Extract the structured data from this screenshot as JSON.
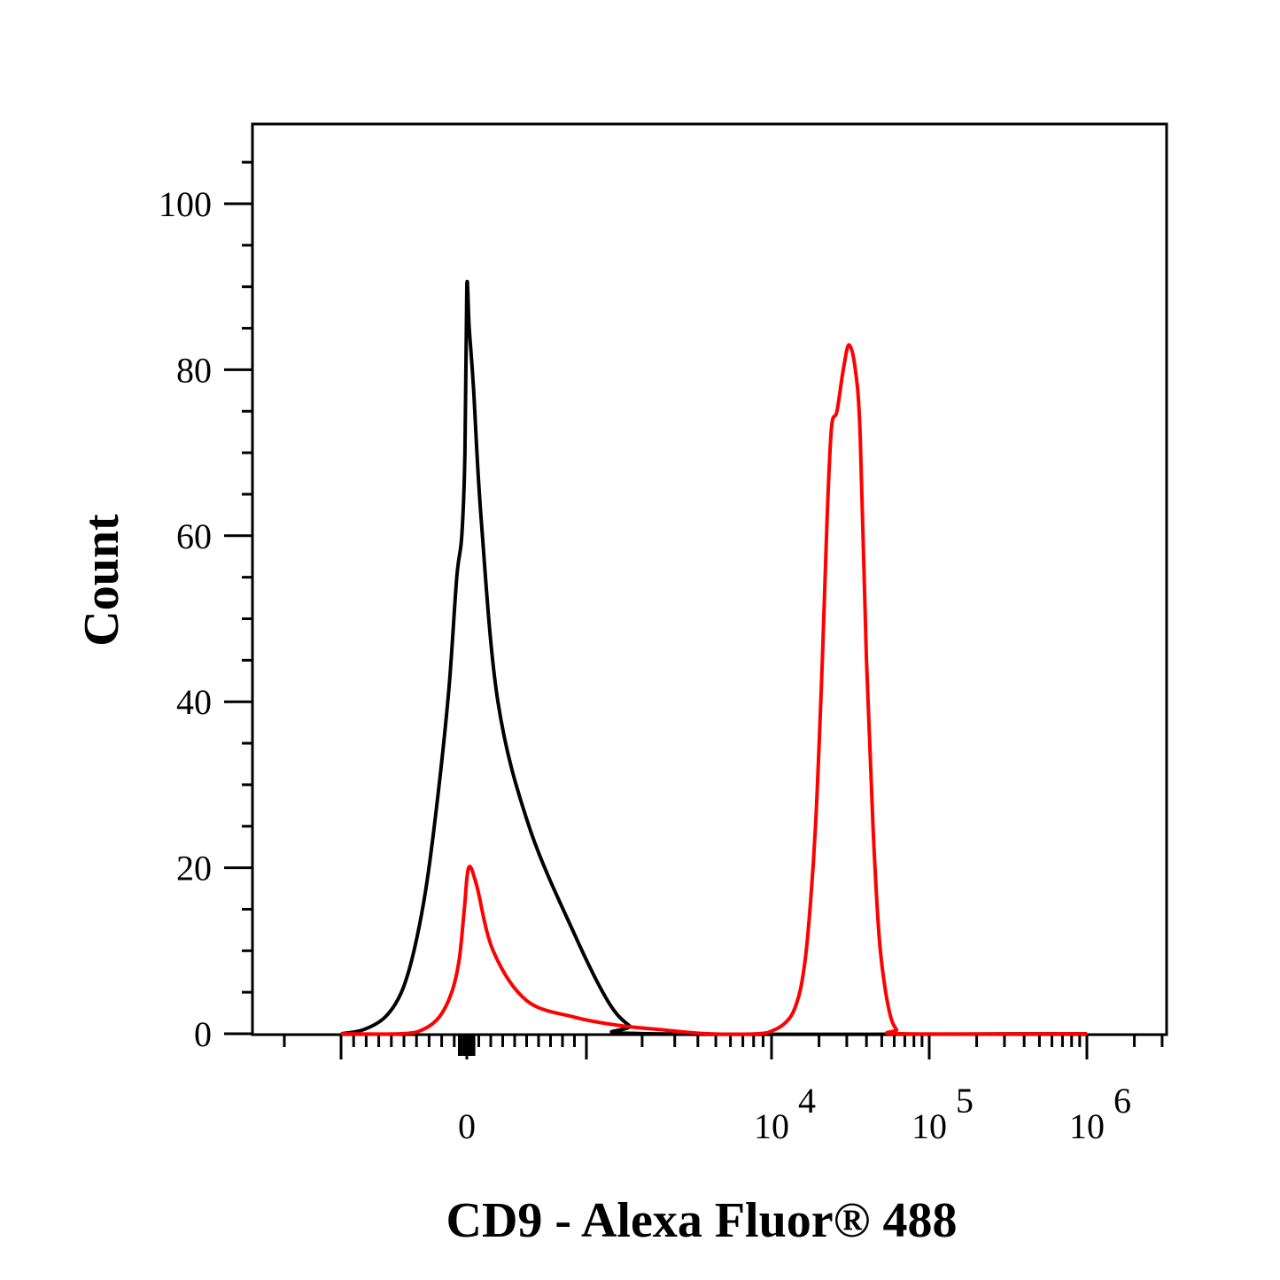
{
  "chart_data": {
    "type": "line",
    "title": "",
    "xlabel": "CD9 - Alexa Fluor® 488",
    "ylabel": "Count",
    "x_scale": "biexponential",
    "ylim": [
      0,
      110
    ],
    "grid": false,
    "legend": "none",
    "y_ticks": [
      "0",
      "20",
      "40",
      "60",
      "80",
      "100"
    ],
    "x_ticks": [
      {
        "base": "0",
        "exp": ""
      },
      {
        "base": "10",
        "exp": "4"
      },
      {
        "base": "10",
        "exp": "5"
      },
      {
        "base": "10",
        "exp": "6"
      }
    ],
    "series": [
      {
        "color": "#000000",
        "points": [
          [
            -1000,
            0
          ],
          [
            -820,
            0.5
          ],
          [
            -650,
            2
          ],
          [
            -520,
            5
          ],
          [
            -420,
            10
          ],
          [
            -320,
            18
          ],
          [
            -220,
            30
          ],
          [
            -140,
            42
          ],
          [
            -80,
            55
          ],
          [
            -40,
            60
          ],
          [
            -15,
            70
          ],
          [
            0,
            90
          ],
          [
            20,
            85
          ],
          [
            55,
            78
          ],
          [
            120,
            62
          ],
          [
            260,
            40
          ],
          [
            520,
            25
          ],
          [
            900,
            12
          ],
          [
            1300,
            4
          ],
          [
            1700,
            1
          ],
          [
            2200,
            0
          ],
          [
            1000000,
            0
          ]
        ]
      },
      {
        "color": "#ff0000",
        "points": [
          [
            -1000,
            0
          ],
          [
            -520,
            0
          ],
          [
            -350,
            0.5
          ],
          [
            -220,
            2
          ],
          [
            -120,
            5
          ],
          [
            -60,
            9
          ],
          [
            -20,
            15
          ],
          [
            15,
            20
          ],
          [
            80,
            18
          ],
          [
            220,
            10
          ],
          [
            500,
            4
          ],
          [
            900,
            2
          ],
          [
            1500,
            1
          ],
          [
            2500,
            0.5
          ],
          [
            4500,
            0
          ],
          [
            8500,
            0
          ],
          [
            10500,
            0.5
          ],
          [
            12500,
            1.5
          ],
          [
            14000,
            3
          ],
          [
            15500,
            6
          ],
          [
            17000,
            12
          ],
          [
            19000,
            25
          ],
          [
            21000,
            45
          ],
          [
            22500,
            62
          ],
          [
            24000,
            73
          ],
          [
            26000,
            75
          ],
          [
            28500,
            80
          ],
          [
            31000,
            83
          ],
          [
            34000,
            80
          ],
          [
            36500,
            72
          ],
          [
            40000,
            45
          ],
          [
            44000,
            25
          ],
          [
            48000,
            12
          ],
          [
            52000,
            6
          ],
          [
            57000,
            2
          ],
          [
            62000,
            0.5
          ],
          [
            67000,
            0
          ],
          [
            1000000,
            0
          ]
        ]
      }
    ]
  }
}
